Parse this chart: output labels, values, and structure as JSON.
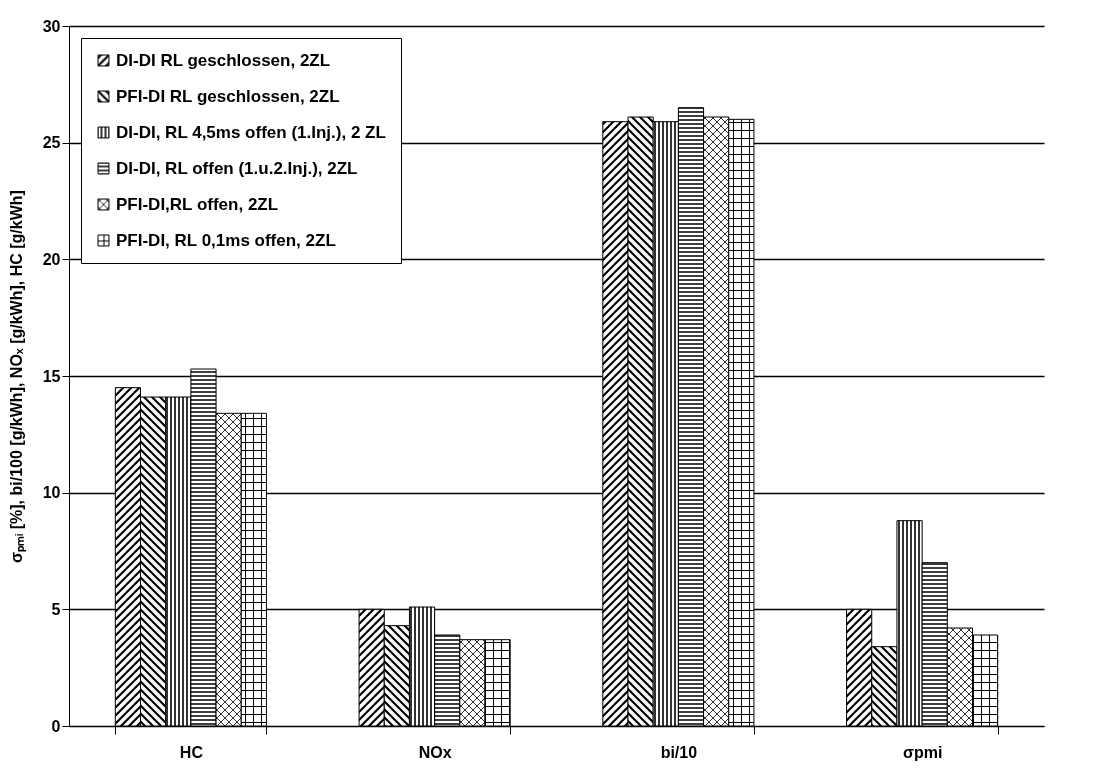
{
  "chart_data": {
    "type": "bar",
    "ylabel": "σₚₘᵢ [%], bi/100 [g/kWh], NOₓ [g/kWh], HC [g/kWh]",
    "categories": [
      "HC",
      "NOx",
      "bi/10",
      "σpmi"
    ],
    "series": [
      {
        "name": "DI-DI RL geschlossen, 2ZL",
        "color": "#000000",
        "values": [
          14.5,
          5.0,
          25.9,
          5.0
        ]
      },
      {
        "name": "PFI-DI RL geschlossen, 2ZL",
        "color": "#000000",
        "values": [
          14.1,
          4.3,
          26.1,
          3.4
        ]
      },
      {
        "name": "DI-DI, RL 4,5ms offen (1.Inj.), 2 ZL",
        "color": "#000000",
        "values": [
          14.1,
          5.1,
          25.9,
          8.8
        ]
      },
      {
        "name": "DI-DI, RL offen (1.u.2.Inj.), 2ZL",
        "color": "#000000",
        "values": [
          15.3,
          3.9,
          26.5,
          7.0
        ]
      },
      {
        "name": "PFI-DI,RL offen, 2ZL",
        "color": "#000000",
        "values": [
          13.4,
          3.7,
          26.1,
          4.2
        ]
      },
      {
        "name": "PFI-DI, RL 0,1ms offen, 2ZL",
        "color": "#000000",
        "values": [
          13.4,
          3.7,
          26.0,
          3.9
        ]
      }
    ],
    "ylim": [
      0,
      30
    ],
    "yticks": [
      0,
      5,
      10,
      15,
      20,
      25,
      30
    ],
    "grid": "y",
    "legend": "top left"
  }
}
